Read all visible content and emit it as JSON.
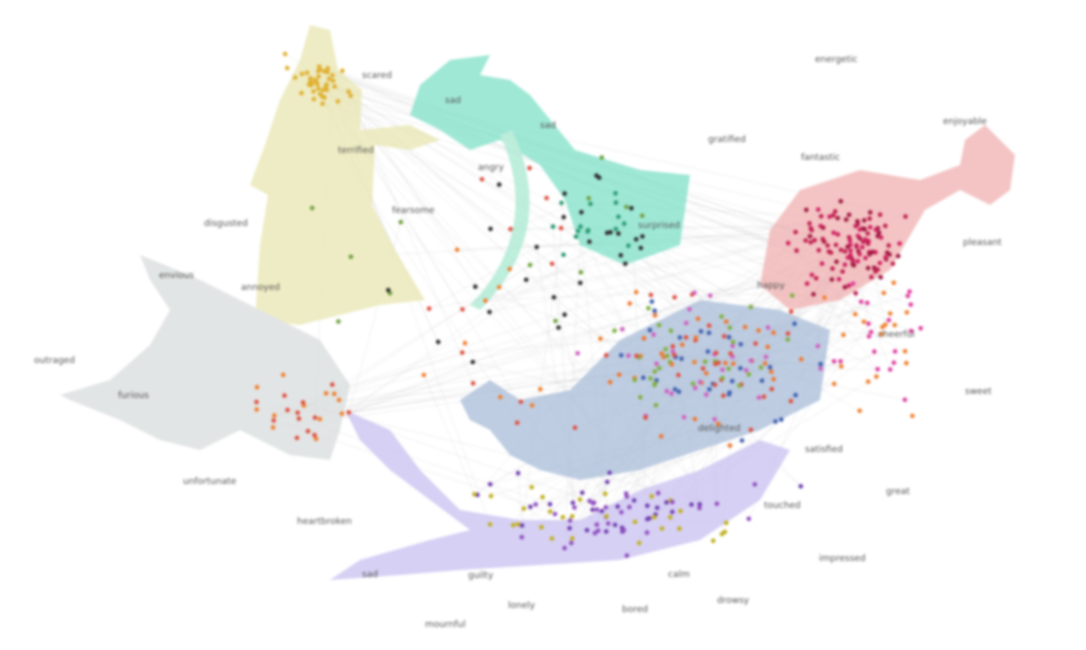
{
  "emotion_labels": [
    "scared",
    "energetic",
    "enjoyable",
    "terrified",
    "sad",
    "fantastic",
    "pleasant",
    "disgusted",
    "fearsome",
    "angry",
    "sad",
    "outraged",
    "furious",
    "unfortunate",
    "happy",
    "sweet",
    "cheerful",
    "delighted",
    "satisfied",
    "touched",
    "great",
    "impressed",
    "calm",
    "drowsy",
    "heartbroken",
    "guilty",
    "lonely",
    "bored",
    "mournful",
    "sad",
    "gratified",
    "annoyed",
    "surprised",
    "envious"
  ],
  "clusters": [
    {
      "name": "yellow-figure",
      "color": "#e8e6b0",
      "dot": "#e0b030"
    },
    {
      "name": "teal-hand",
      "color": "#7fe0c8",
      "dot": "#2a9a70"
    },
    {
      "name": "red-wineglass",
      "color": "#f0b0b0",
      "dot": "#c02050"
    },
    {
      "name": "gray-wolf",
      "color": "#d8dcdc",
      "dot": "#e05040"
    },
    {
      "name": "blue-mermaid",
      "color": "#a8bcd8",
      "dot": "#4060b0"
    },
    {
      "name": "purple-tail",
      "color": "#c8c0f0",
      "dot": "#7040b0"
    }
  ]
}
